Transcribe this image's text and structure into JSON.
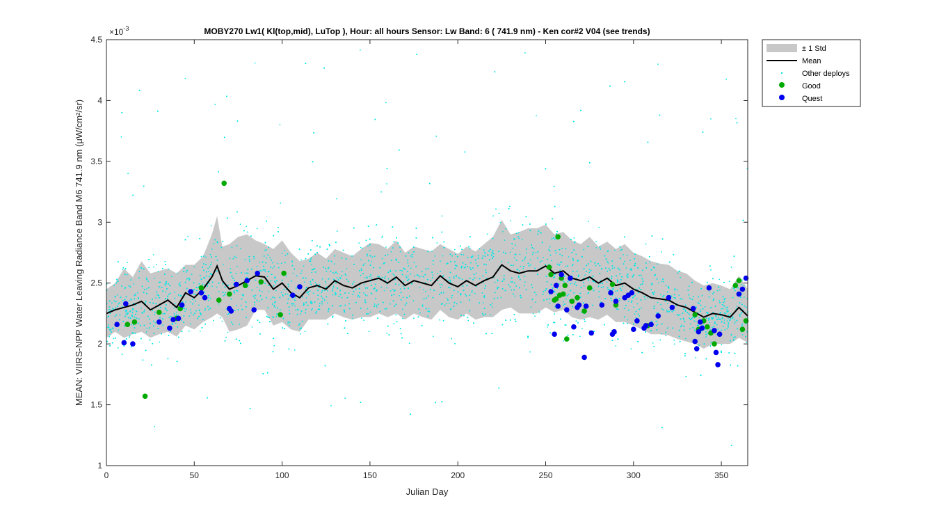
{
  "chart_data": {
    "type": "scatter",
    "title": "MOBY270   Lw1( Kl(top,mid), LuTop ),   Hour: all hours  Sensor: Lw Band: 6 ( 741.9 nm)  - Ken cor#2 V04 (see trends)",
    "xlabel": "Julian Day",
    "ylabel": "MEAN: VIIRS-NPP Water Leaving Radiance Band M6 741.9 nm (μW/cm²/sr)",
    "y_exponent_label": "×10",
    "y_exponent_power": "-3",
    "xlim": [
      0,
      365
    ],
    "ylim": [
      0.001,
      0.0045
    ],
    "x_ticks": [
      0,
      50,
      100,
      150,
      200,
      250,
      300,
      350
    ],
    "y_ticks": [
      0.001,
      0.0015,
      0.002,
      0.0025,
      0.003,
      0.0035,
      0.004,
      0.0045
    ],
    "y_tick_labels": [
      "1",
      "1.5",
      "2",
      "2.5",
      "3",
      "3.5",
      "4",
      "4.5"
    ],
    "legend": {
      "placement": "outside-top-right",
      "entries": [
        "± 1 Std",
        "Mean",
        "Other deploys",
        "Good",
        "Quest"
      ]
    },
    "colors": {
      "std_band": "#c8c8c8",
      "mean": "#000000",
      "other": "#00e6e6",
      "good": "#00aa00",
      "quest": "#0000ee"
    },
    "series": [
      {
        "name": "Mean",
        "x": [
          0,
          5,
          10,
          15,
          20,
          25,
          30,
          35,
          40,
          45,
          50,
          55,
          60,
          63,
          66,
          70,
          75,
          80,
          85,
          90,
          95,
          100,
          105,
          110,
          115,
          120,
          125,
          130,
          135,
          140,
          145,
          150,
          155,
          160,
          165,
          170,
          175,
          180,
          185,
          190,
          195,
          200,
          205,
          210,
          215,
          220,
          225,
          230,
          235,
          240,
          245,
          250,
          255,
          260,
          265,
          270,
          275,
          280,
          285,
          290,
          295,
          300,
          305,
          310,
          315,
          320,
          325,
          330,
          335,
          340,
          345,
          350,
          355,
          360,
          365
        ],
        "y": [
          0.00225,
          0.00228,
          0.0023,
          0.00232,
          0.00235,
          0.00228,
          0.00232,
          0.00236,
          0.0023,
          0.00242,
          0.00238,
          0.00245,
          0.00255,
          0.00264,
          0.00252,
          0.00245,
          0.00248,
          0.00252,
          0.00256,
          0.00255,
          0.00245,
          0.0025,
          0.00242,
          0.00238,
          0.00246,
          0.00248,
          0.00245,
          0.00252,
          0.00248,
          0.00246,
          0.0025,
          0.00252,
          0.00254,
          0.0025,
          0.00255,
          0.00248,
          0.00252,
          0.0025,
          0.00248,
          0.00256,
          0.0025,
          0.00247,
          0.00252,
          0.00248,
          0.00252,
          0.00255,
          0.00265,
          0.0026,
          0.00258,
          0.0026,
          0.0026,
          0.00264,
          0.00258,
          0.0026,
          0.00254,
          0.00252,
          0.00255,
          0.0025,
          0.00254,
          0.00248,
          0.0025,
          0.00245,
          0.00242,
          0.00238,
          0.00237,
          0.00236,
          0.00232,
          0.0023,
          0.00226,
          0.00222,
          0.00225,
          0.00224,
          0.00222,
          0.0023,
          0.00223
        ]
      },
      {
        "name": "± 1 Std",
        "x": [
          0,
          5,
          10,
          15,
          20,
          25,
          30,
          35,
          40,
          45,
          50,
          55,
          60,
          63,
          66,
          70,
          75,
          80,
          85,
          90,
          95,
          100,
          105,
          110,
          115,
          120,
          125,
          130,
          135,
          140,
          145,
          150,
          155,
          160,
          165,
          170,
          175,
          180,
          185,
          190,
          195,
          200,
          205,
          210,
          215,
          220,
          225,
          230,
          235,
          240,
          245,
          250,
          255,
          260,
          265,
          270,
          275,
          280,
          285,
          290,
          295,
          300,
          305,
          310,
          315,
          320,
          325,
          330,
          335,
          340,
          345,
          350,
          355,
          360,
          365
        ],
        "upper": [
          0.00245,
          0.0025,
          0.00262,
          0.00255,
          0.00268,
          0.00258,
          0.0026,
          0.00262,
          0.00258,
          0.00265,
          0.00265,
          0.00272,
          0.0029,
          0.00305,
          0.0028,
          0.00282,
          0.00288,
          0.0029,
          0.00285,
          0.00282,
          0.00278,
          0.00285,
          0.00275,
          0.00268,
          0.0027,
          0.00275,
          0.0027,
          0.00278,
          0.00275,
          0.00272,
          0.00278,
          0.00283,
          0.00282,
          0.00278,
          0.00285,
          0.00275,
          0.0028,
          0.00278,
          0.00276,
          0.00282,
          0.00278,
          0.00274,
          0.0028,
          0.00276,
          0.00282,
          0.00288,
          0.00302,
          0.0029,
          0.00292,
          0.00295,
          0.00295,
          0.00298,
          0.0029,
          0.00292,
          0.00285,
          0.00282,
          0.00288,
          0.0028,
          0.00284,
          0.00278,
          0.00282,
          0.00275,
          0.00272,
          0.00268,
          0.00266,
          0.00265,
          0.0026,
          0.00258,
          0.00252,
          0.00248,
          0.0025,
          0.00248,
          0.00245,
          0.00256,
          0.00245
        ],
        "lower": [
          0.00205,
          0.0021,
          0.00205,
          0.00208,
          0.0021,
          0.00205,
          0.00208,
          0.0021,
          0.00206,
          0.00215,
          0.00212,
          0.00218,
          0.00222,
          0.00225,
          0.00222,
          0.0021,
          0.00212,
          0.00215,
          0.00228,
          0.00228,
          0.00215,
          0.00218,
          0.00212,
          0.0021,
          0.0022,
          0.0022,
          0.0022,
          0.00225,
          0.00222,
          0.0022,
          0.00222,
          0.00222,
          0.00225,
          0.00222,
          0.00225,
          0.0022,
          0.00225,
          0.00222,
          0.0022,
          0.00228,
          0.00222,
          0.0022,
          0.00225,
          0.0022,
          0.00222,
          0.00222,
          0.00228,
          0.0023,
          0.00225,
          0.00225,
          0.00225,
          0.0023,
          0.00226,
          0.00228,
          0.00222,
          0.0022,
          0.00222,
          0.0022,
          0.00224,
          0.00218,
          0.00218,
          0.00215,
          0.00212,
          0.00208,
          0.00208,
          0.00207,
          0.00204,
          0.00202,
          0.002,
          0.00196,
          0.002,
          0.002,
          0.002,
          0.00205,
          0.00201
        ]
      },
      {
        "name": "Good",
        "x": [
          12,
          16,
          22,
          30,
          40,
          42,
          54,
          64,
          67,
          70,
          79,
          88,
          99,
          101,
          252,
          253,
          255,
          256,
          257,
          258,
          259,
          260,
          261,
          262,
          265,
          268,
          272,
          275,
          288,
          290,
          308,
          335,
          337,
          340,
          342,
          344,
          346,
          358,
          360,
          362,
          364
        ],
        "y": [
          0.00216,
          0.00218,
          0.00157,
          0.00226,
          0.00221,
          0.00229,
          0.00246,
          0.00236,
          0.00332,
          0.00241,
          0.00248,
          0.00251,
          0.00224,
          0.00258,
          0.00263,
          0.00257,
          0.00236,
          0.00237,
          0.00288,
          0.0024,
          0.00254,
          0.00241,
          0.00248,
          0.00204,
          0.00235,
          0.00238,
          0.00227,
          0.00246,
          0.00249,
          0.00232,
          0.00215,
          0.00224,
          0.00212,
          0.00219,
          0.00214,
          0.00209,
          0.002,
          0.00248,
          0.00252,
          0.00212,
          0.00219
        ]
      },
      {
        "name": "Quest",
        "x": [
          6,
          10,
          11,
          15,
          30,
          36,
          38,
          41,
          43,
          48,
          54,
          56,
          70,
          71,
          74,
          80,
          84,
          86,
          106,
          110,
          253,
          255,
          256,
          257,
          259,
          262,
          264,
          266,
          268,
          269,
          272,
          273,
          276,
          282,
          287,
          288,
          289,
          290,
          295,
          297,
          299,
          300,
          302,
          306,
          307,
          310,
          314,
          320,
          322,
          334,
          335,
          336,
          337,
          338,
          339,
          343,
          346,
          347,
          348,
          349,
          360,
          362,
          364
        ],
        "y": [
          0.00216,
          0.00201,
          0.00233,
          0.002,
          0.00218,
          0.00213,
          0.0022,
          0.00221,
          0.00232,
          0.00243,
          0.00242,
          0.00238,
          0.00229,
          0.00227,
          0.00249,
          0.00252,
          0.00228,
          0.00258,
          0.0024,
          0.00247,
          0.00243,
          0.00208,
          0.00248,
          0.00231,
          0.00257,
          0.00228,
          0.00254,
          0.00214,
          0.0023,
          0.00232,
          0.00189,
          0.00231,
          0.00209,
          0.00232,
          0.00242,
          0.00208,
          0.0021,
          0.00235,
          0.00238,
          0.0024,
          0.00242,
          0.00212,
          0.00219,
          0.00213,
          0.00215,
          0.00216,
          0.00223,
          0.00238,
          0.0023,
          0.00229,
          0.00202,
          0.00196,
          0.0021,
          0.00218,
          0.00213,
          0.00246,
          0.00211,
          0.00193,
          0.00183,
          0.00208,
          0.00241,
          0.00245,
          0.00254
        ]
      }
    ]
  }
}
